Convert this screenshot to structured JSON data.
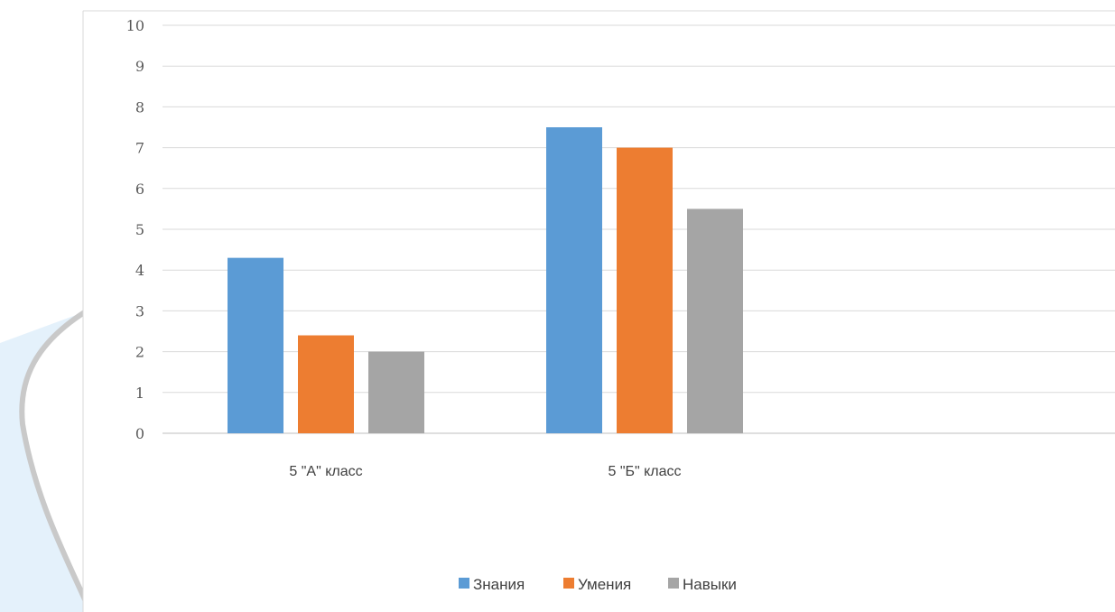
{
  "chart_data": {
    "type": "bar",
    "categories": [
      "5 \"А\" класс",
      "5 \"Б\" класс"
    ],
    "series": [
      {
        "name": "Знания",
        "color": "#5b9bd5",
        "values": [
          4.3,
          7.5
        ]
      },
      {
        "name": "Умения",
        "color": "#ed7d31",
        "values": [
          2.4,
          7.0
        ]
      },
      {
        "name": "Навыки",
        "color": "#a5a5a5",
        "values": [
          2.0,
          5.5
        ]
      }
    ],
    "ylim": [
      0,
      10
    ],
    "y_ticks": [
      "0",
      "1",
      "2",
      "3",
      "4",
      "5",
      "6",
      "7",
      "8",
      "9",
      "10"
    ],
    "grid": true,
    "legend_position": "bottom"
  }
}
